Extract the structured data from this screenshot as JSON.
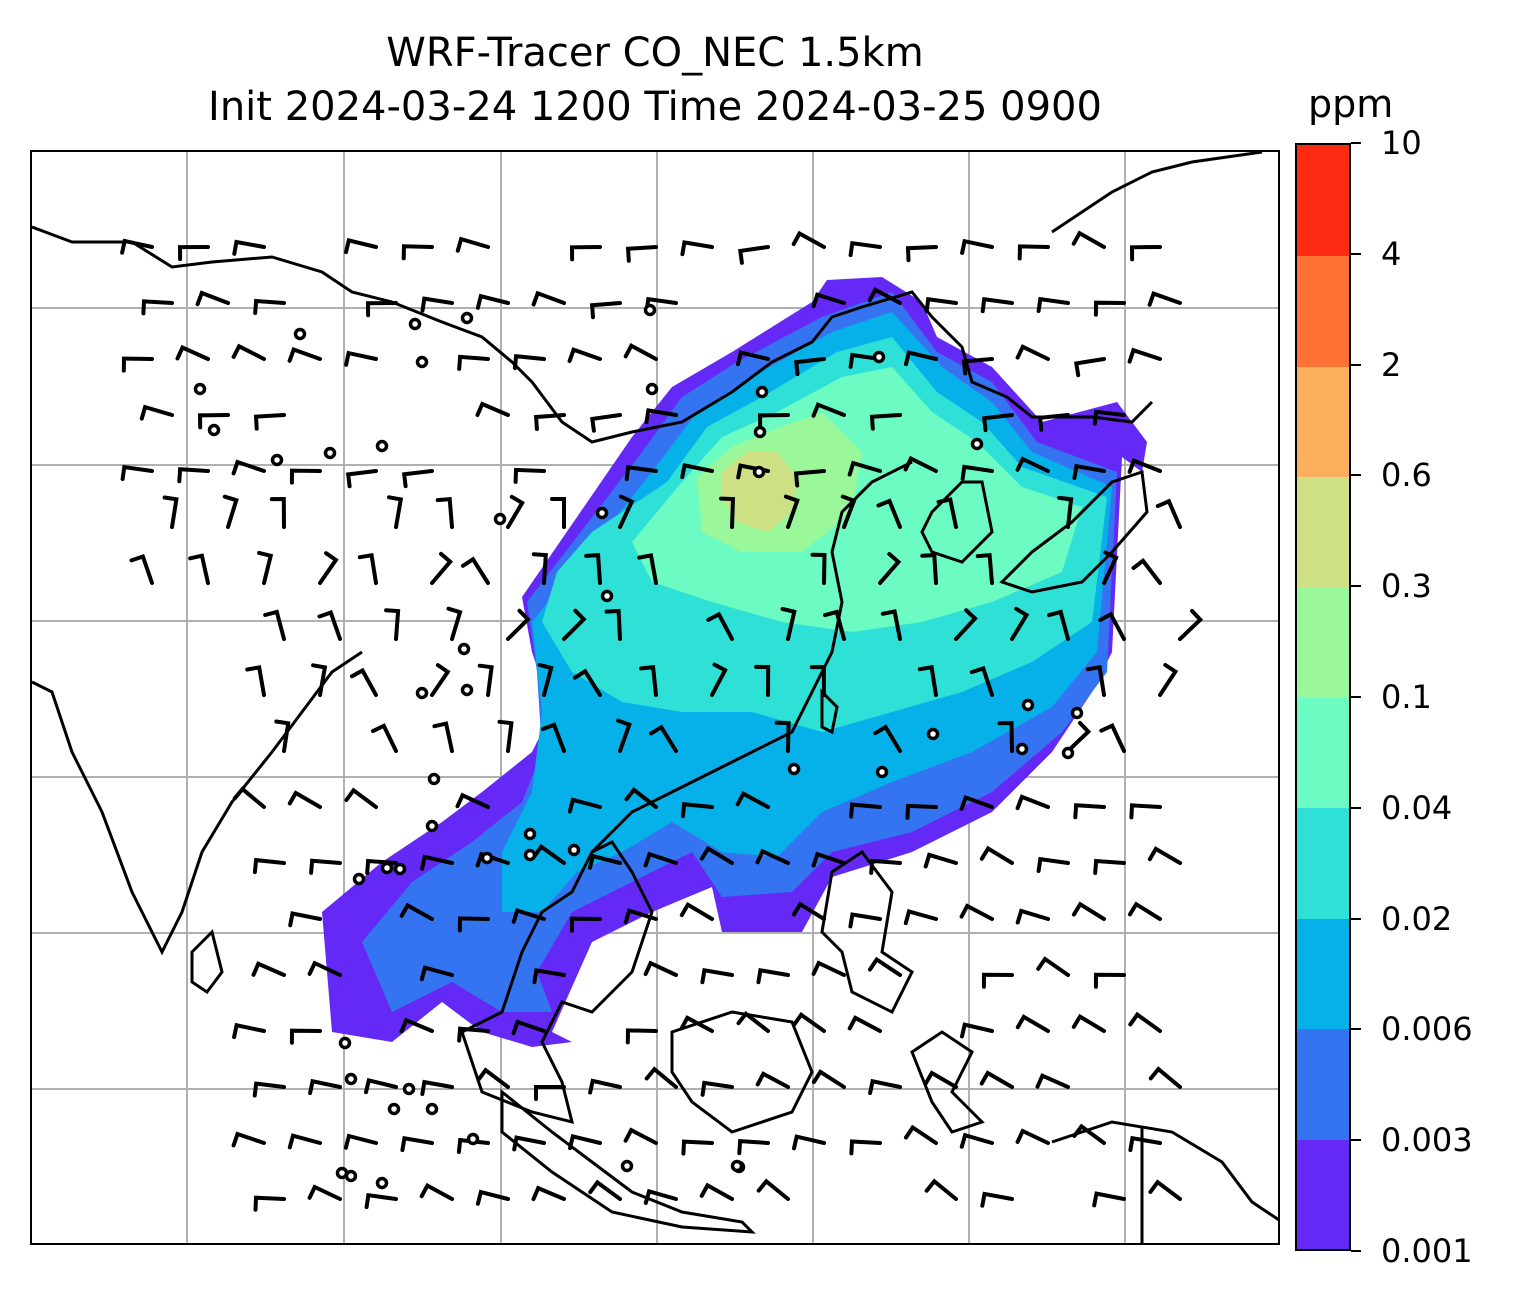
{
  "title_line1": "WRF-Tracer CO_NEC 1.5km",
  "title_line2": "Init 2024-03-24 1200 Time 2024-03-25 0900",
  "colorbar": {
    "unit": "ppm",
    "ticks": [
      "0.001",
      "0.003",
      "0.006",
      "0.02",
      "0.04",
      "0.1",
      "0.3",
      "0.6",
      "2",
      "4",
      "10"
    ],
    "colors": [
      "#6429f5",
      "#3474f1",
      "#06b1e9",
      "#2ee0d6",
      "#6cfbc2",
      "#9af89b",
      "#cde184",
      "#fcb05e",
      "#ff7236",
      "#fe2b14"
    ]
  },
  "map": {
    "grid": {
      "lon_lines": 7,
      "lat_lines": 6,
      "color": "#b0b0b0"
    },
    "plume_levels": [
      "0.001",
      "0.003",
      "0.006",
      "0.02",
      "0.04",
      "0.1",
      "0.3"
    ],
    "symbols": [
      "coastline",
      "wind-barb",
      "calm-wind-circle"
    ]
  }
}
